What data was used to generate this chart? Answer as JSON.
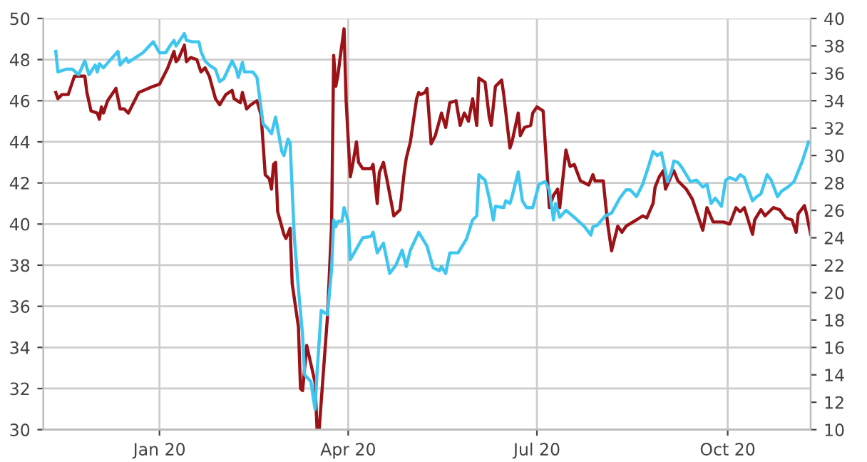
{
  "chart_data": {
    "type": "line",
    "xlim": [
      "2019-11-06",
      "2020-11-10"
    ],
    "xticks": [
      {
        "value": "2020-01-01",
        "label": "Jan 20"
      },
      {
        "value": "2020-04-01",
        "label": "Apr 20"
      },
      {
        "value": "2020-07-01",
        "label": "Jul 20"
      },
      {
        "value": "2020-10-01",
        "label": "Oct 20"
      }
    ],
    "ylim": [
      30,
      50
    ],
    "yticks": [
      30,
      32,
      34,
      36,
      38,
      40,
      42,
      44,
      46,
      48,
      50
    ],
    "y2lim": [
      10,
      40
    ],
    "y2ticks": [
      10,
      12,
      14,
      16,
      18,
      20,
      22,
      24,
      26,
      28,
      30,
      32,
      34,
      36,
      38,
      40
    ],
    "grid": true,
    "marker": "none",
    "line_style": "solid",
    "series": [
      {
        "color": "#3ec6f0",
        "axis": "y2",
        "x": [
          "2019-11-12",
          "2019-11-13",
          "2019-11-17",
          "2019-11-20",
          "2019-11-23",
          "2019-11-26",
          "2019-11-28",
          "2019-12-01",
          "2019-12-02",
          "2019-12-03",
          "2019-12-05",
          "2019-12-09",
          "2019-12-12",
          "2019-12-13",
          "2019-12-16",
          "2019-12-17",
          "2019-12-20",
          "2019-12-24",
          "2019-12-29",
          "2020-01-01",
          "2020-01-04",
          "2020-01-06",
          "2020-01-08",
          "2020-01-09",
          "2020-01-13",
          "2020-01-14",
          "2020-01-17",
          "2020-01-20",
          "2020-01-21",
          "2020-01-23",
          "2020-01-25",
          "2020-01-28",
          "2020-01-30",
          "2020-02-01",
          "2020-02-05",
          "2020-02-07",
          "2020-02-08",
          "2020-02-10",
          "2020-02-11",
          "2020-02-15",
          "2020-02-17",
          "2020-02-20",
          "2020-02-22",
          "2020-02-24",
          "2020-02-26",
          "2020-02-29",
          "2020-03-01",
          "2020-03-03",
          "2020-03-04",
          "2020-03-06",
          "2020-03-08",
          "2020-03-10",
          "2020-03-11",
          "2020-03-14",
          "2020-03-16",
          "2020-03-17",
          "2020-03-19",
          "2020-03-22",
          "2020-03-24",
          "2020-03-25",
          "2020-03-26",
          "2020-03-27",
          "2020-03-29",
          "2020-03-30",
          "2020-04-01",
          "2020-04-02",
          "2020-04-05",
          "2020-04-08",
          "2020-04-12",
          "2020-04-13",
          "2020-04-15",
          "2020-04-18",
          "2020-04-21",
          "2020-04-24",
          "2020-04-27",
          "2020-04-29",
          "2020-05-01",
          "2020-05-05",
          "2020-05-09",
          "2020-05-12",
          "2020-05-15",
          "2020-05-16",
          "2020-05-18",
          "2020-05-20",
          "2020-05-24",
          "2020-05-28",
          "2020-05-31",
          "2020-06-02",
          "2020-06-03",
          "2020-06-06",
          "2020-06-08",
          "2020-06-10",
          "2020-06-11",
          "2020-06-15",
          "2020-06-16",
          "2020-06-18",
          "2020-06-19",
          "2020-06-22",
          "2020-06-24",
          "2020-06-26",
          "2020-06-29",
          "2020-07-02",
          "2020-07-05",
          "2020-07-07",
          "2020-07-09",
          "2020-07-10",
          "2020-07-12",
          "2020-07-15",
          "2020-07-19",
          "2020-07-24",
          "2020-07-27",
          "2020-07-28",
          "2020-07-30",
          "2020-08-03",
          "2020-08-06",
          "2020-08-10",
          "2020-08-13",
          "2020-08-15",
          "2020-08-18",
          "2020-08-21",
          "2020-08-24",
          "2020-08-26",
          "2020-08-28",
          "2020-08-30",
          "2020-09-02",
          "2020-09-04",
          "2020-09-05",
          "2020-09-07",
          "2020-09-09",
          "2020-09-13",
          "2020-09-16",
          "2020-09-19",
          "2020-09-21",
          "2020-09-23",
          "2020-09-25",
          "2020-09-28",
          "2020-09-30",
          "2020-10-02",
          "2020-10-05",
          "2020-10-07",
          "2020-10-09",
          "2020-10-11",
          "2020-10-13",
          "2020-10-15",
          "2020-10-17",
          "2020-10-20",
          "2020-10-22",
          "2020-10-25",
          "2020-10-27",
          "2020-10-30",
          "2020-11-02",
          "2020-11-06",
          "2020-11-09"
        ],
        "values": [
          37.6,
          36.1,
          36.3,
          36.3,
          35.9,
          36.9,
          35.9,
          36.6,
          36.1,
          36.7,
          36.4,
          37.1,
          37.6,
          36.6,
          37.1,
          36.8,
          37.1,
          37.5,
          38.3,
          37.5,
          37.5,
          38.0,
          38.4,
          38.0,
          38.9,
          38.4,
          38.3,
          38.3,
          37.6,
          36.9,
          36.6,
          36.3,
          35.4,
          35.6,
          36.9,
          36.3,
          35.7,
          36.8,
          36.1,
          36.1,
          35.7,
          32.3,
          32.0,
          31.6,
          32.8,
          30.3,
          30.0,
          31.2,
          30.9,
          24.1,
          20.3,
          16.9,
          14.0,
          13.5,
          11.5,
          14.2,
          18.7,
          18.4,
          21.7,
          25.3,
          24.8,
          25.2,
          25.2,
          26.2,
          25.2,
          22.4,
          23.2,
          24.0,
          24.1,
          24.4,
          22.9,
          23.6,
          21.4,
          22.0,
          23.1,
          21.9,
          23.1,
          24.4,
          23.4,
          21.8,
          21.6,
          21.9,
          21.4,
          22.9,
          22.9,
          23.9,
          25.3,
          25.6,
          28.6,
          28.2,
          26.9,
          25.3,
          26.3,
          26.2,
          26.7,
          26.5,
          27.0,
          28.8,
          26.7,
          26.2,
          26.2,
          27.9,
          28.1,
          27.5,
          25.3,
          26.5,
          25.5,
          26.0,
          25.5,
          24.8,
          24.2,
          24.8,
          24.9,
          25.6,
          25.8,
          26.9,
          27.5,
          27.5,
          27.0,
          27.9,
          29.3,
          30.3,
          30.0,
          30.2,
          28.1,
          28.9,
          29.6,
          29.5,
          29.1,
          28.1,
          28.2,
          27.7,
          27.9,
          26.5,
          26.9,
          26.3,
          28.2,
          28.4,
          28.2,
          28.6,
          28.4,
          27.5,
          26.7,
          27.0,
          27.2,
          28.6,
          28.2,
          27.0,
          27.4,
          27.7,
          28.1,
          29.6,
          31.0
        ]
      },
      {
        "color": "#9b1217",
        "axis": "y",
        "x": [
          "2019-11-12",
          "2019-11-13",
          "2019-11-15",
          "2019-11-18",
          "2019-11-21",
          "2019-11-26",
          "2019-11-27",
          "2019-11-29",
          "2019-12-02",
          "2019-12-03",
          "2019-12-04",
          "2019-12-05",
          "2019-12-07",
          "2019-12-11",
          "2019-12-13",
          "2019-12-15",
          "2019-12-17",
          "2019-12-22",
          "2019-12-29",
          "2020-01-01",
          "2020-01-05",
          "2020-01-08",
          "2020-01-09",
          "2020-01-10",
          "2020-01-13",
          "2020-01-14",
          "2020-01-16",
          "2020-01-19",
          "2020-01-21",
          "2020-01-23",
          "2020-01-25",
          "2020-01-28",
          "2020-01-30",
          "2020-02-02",
          "2020-02-05",
          "2020-02-06",
          "2020-02-09",
          "2020-02-10",
          "2020-02-12",
          "2020-02-14",
          "2020-02-17",
          "2020-02-19",
          "2020-02-21",
          "2020-02-23",
          "2020-02-24",
          "2020-02-25",
          "2020-02-26",
          "2020-02-27",
          "2020-03-01",
          "2020-03-02",
          "2020-03-04",
          "2020-03-05",
          "2020-03-08",
          "2020-03-09",
          "2020-03-10",
          "2020-03-12",
          "2020-03-14",
          "2020-03-16",
          "2020-03-17",
          "2020-03-18",
          "2020-03-22",
          "2020-03-24",
          "2020-03-25",
          "2020-03-26",
          "2020-03-27",
          "2020-03-28",
          "2020-03-30",
          "2020-03-31",
          "2020-04-02",
          "2020-04-03",
          "2020-04-05",
          "2020-04-06",
          "2020-04-08",
          "2020-04-12",
          "2020-04-13",
          "2020-04-15",
          "2020-04-16",
          "2020-04-18",
          "2020-04-20",
          "2020-04-23",
          "2020-04-26",
          "2020-04-28",
          "2020-04-29",
          "2020-05-01",
          "2020-05-04",
          "2020-05-05",
          "2020-05-06",
          "2020-05-08",
          "2020-05-09",
          "2020-05-11",
          "2020-05-13",
          "2020-05-16",
          "2020-05-18",
          "2020-05-20",
          "2020-05-23",
          "2020-05-25",
          "2020-05-27",
          "2020-05-29",
          "2020-05-31",
          "2020-06-02",
          "2020-06-03",
          "2020-06-06",
          "2020-06-08",
          "2020-06-09",
          "2020-06-11",
          "2020-06-14",
          "2020-06-15",
          "2020-06-18",
          "2020-06-19",
          "2020-06-22",
          "2020-06-23",
          "2020-06-25",
          "2020-06-28",
          "2020-06-29",
          "2020-07-01",
          "2020-07-04",
          "2020-07-07",
          "2020-07-09",
          "2020-07-11",
          "2020-07-12",
          "2020-07-15",
          "2020-07-17",
          "2020-07-19",
          "2020-07-22",
          "2020-07-26",
          "2020-07-28",
          "2020-07-29",
          "2020-08-02",
          "2020-08-04",
          "2020-08-06",
          "2020-08-09",
          "2020-08-11",
          "2020-08-13",
          "2020-08-18",
          "2020-08-21",
          "2020-08-23",
          "2020-08-26",
          "2020-08-27",
          "2020-08-29",
          "2020-08-31",
          "2020-09-01",
          "2020-09-04",
          "2020-09-05",
          "2020-09-07",
          "2020-09-11",
          "2020-09-14",
          "2020-09-17",
          "2020-09-19",
          "2020-09-21",
          "2020-09-24",
          "2020-09-29",
          "2020-10-02",
          "2020-10-05",
          "2020-10-07",
          "2020-10-09",
          "2020-10-13",
          "2020-10-14",
          "2020-10-17",
          "2020-10-19",
          "2020-10-23",
          "2020-10-26",
          "2020-10-29",
          "2020-11-01",
          "2020-11-03",
          "2020-11-04",
          "2020-11-07",
          "2020-11-08",
          "2020-11-10"
        ],
        "values": [
          46.4,
          46.1,
          46.3,
          46.3,
          47.2,
          47.2,
          46.4,
          45.5,
          45.4,
          45.1,
          45.7,
          45.4,
          46.0,
          46.6,
          45.6,
          45.6,
          45.4,
          46.4,
          46.7,
          46.8,
          47.6,
          48.4,
          47.9,
          48.0,
          48.7,
          47.9,
          48.1,
          48.0,
          47.4,
          47.6,
          47.2,
          46.1,
          45.8,
          46.3,
          46.5,
          46.1,
          45.9,
          46.4,
          45.6,
          45.8,
          46.0,
          45.3,
          42.4,
          42.2,
          41.7,
          42.9,
          43.0,
          40.6,
          39.5,
          39.3,
          39.8,
          37.1,
          35.0,
          32.0,
          31.9,
          34.1,
          33.2,
          32.3,
          30.0,
          30.0,
          35.5,
          40.0,
          48.2,
          46.7,
          47.2,
          48.0,
          49.5,
          46.0,
          42.3,
          42.8,
          44.0,
          43.0,
          42.7,
          42.7,
          42.9,
          41.0,
          42.5,
          43.0,
          42.0,
          40.4,
          40.7,
          42.5,
          43.2,
          44.0,
          46.1,
          46.4,
          46.3,
          46.4,
          46.6,
          43.9,
          44.3,
          45.4,
          44.7,
          45.9,
          46.0,
          44.8,
          45.4,
          45.0,
          46.1,
          44.8,
          47.1,
          46.9,
          45.2,
          44.8,
          46.7,
          47.0,
          46.3,
          43.7,
          44.0,
          45.4,
          44.3,
          44.7,
          44.8,
          45.4,
          45.7,
          45.5,
          40.8,
          41.4,
          41.7,
          40.8,
          43.6,
          42.8,
          42.9,
          42.1,
          41.9,
          42.4,
          42.1,
          42.1,
          40.1,
          38.7,
          39.9,
          39.6,
          39.9,
          40.2,
          40.4,
          40.3,
          41.0,
          41.8,
          42.3,
          42.6,
          41.7,
          42.4,
          42.6,
          42.1,
          41.7,
          41.2,
          40.3,
          39.7,
          40.8,
          40.1,
          40.1,
          40.0,
          40.8,
          40.6,
          40.8,
          39.5,
          40.2,
          40.7,
          40.4,
          40.8,
          40.7,
          40.3,
          40.2,
          39.6,
          40.5,
          40.9,
          40.5,
          39.5
        ]
      }
    ]
  }
}
